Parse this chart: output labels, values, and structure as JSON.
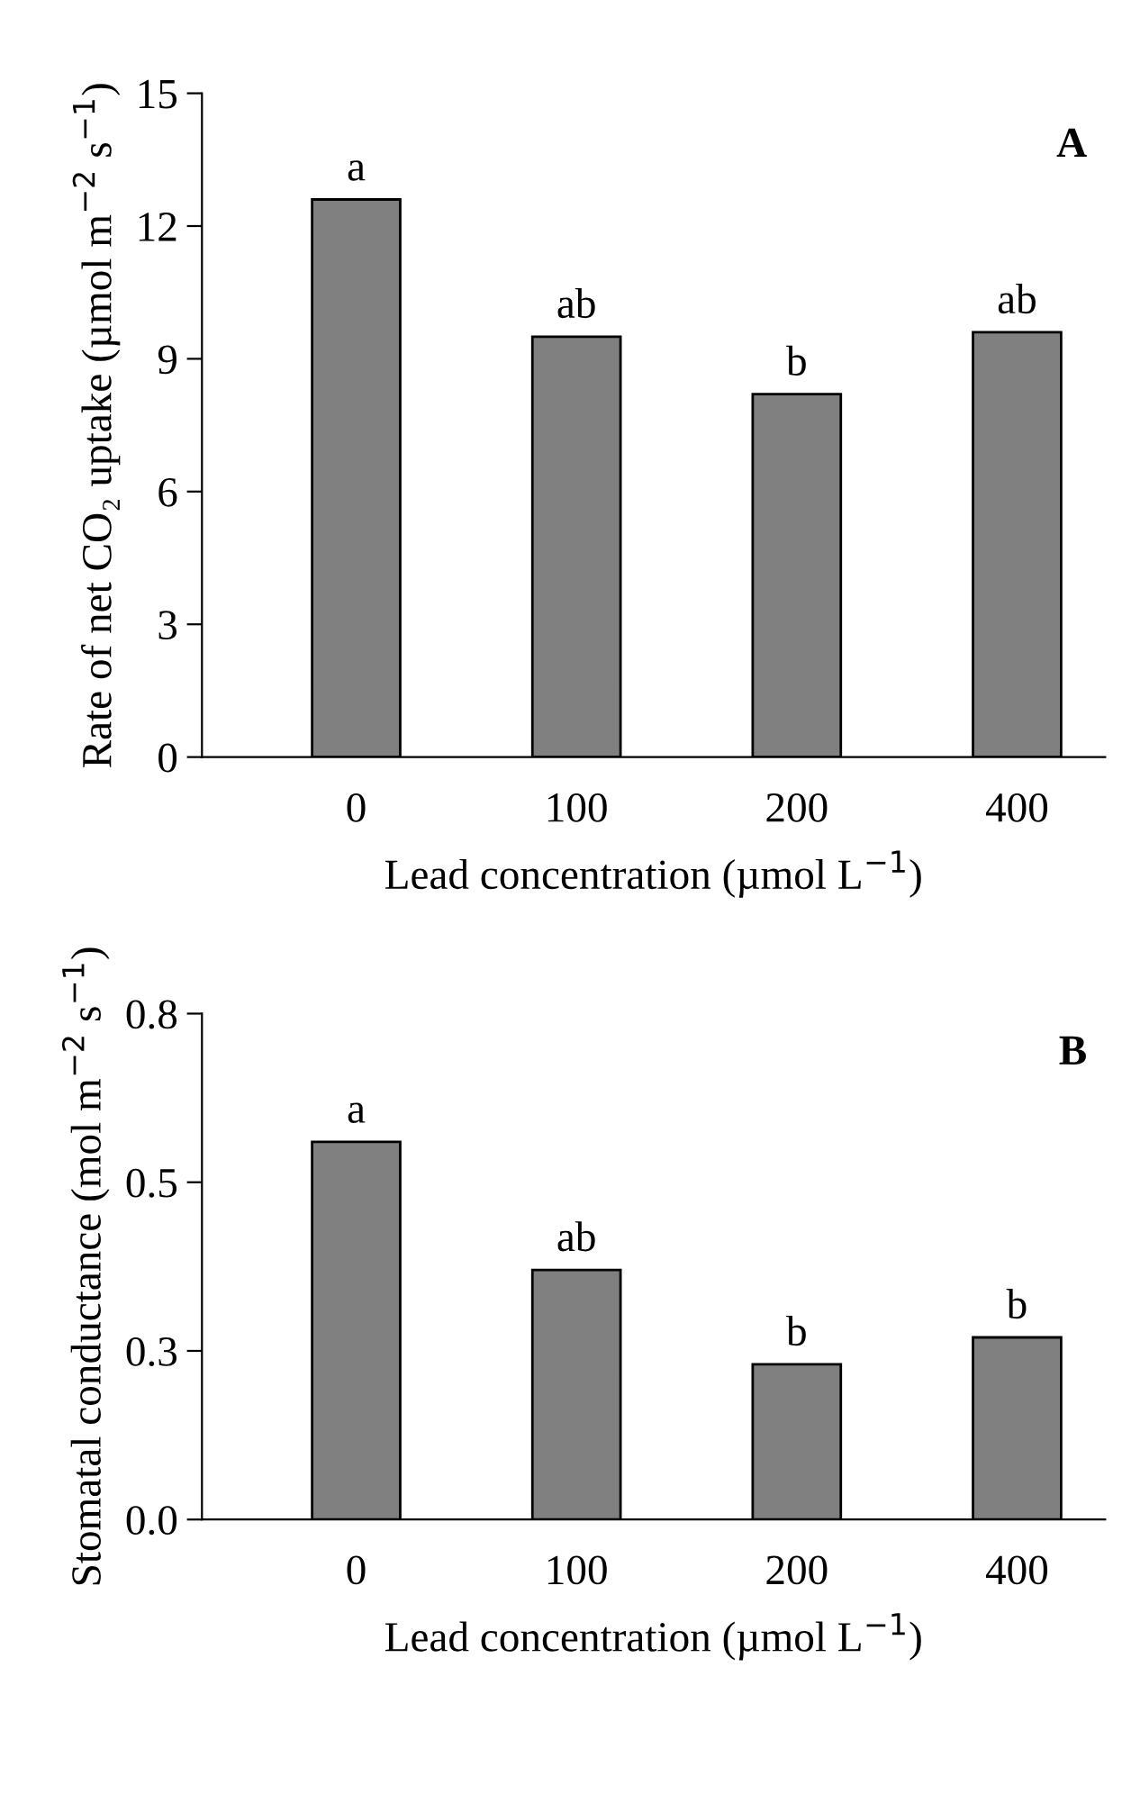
{
  "chart_data": [
    {
      "type": "bar",
      "categories": [
        "0",
        "100",
        "200",
        "400"
      ],
      "values": [
        12.6,
        9.5,
        8.2,
        9.6
      ],
      "color": "#808080",
      "xlabel": "Lead concentration (µmol L$^{−1}$)",
      "ylabel": "Rate of net CO₂ uptake (µmol m$^{−2}$ s$^{−1}$)",
      "ylim": [
        0,
        15
      ],
      "yticks": [
        0,
        3,
        6,
        9,
        12,
        15
      ],
      "grid": false,
      "annotations": [
        "A",
        {
          "text": "a",
          "x": "0",
          "y": 12.6
        },
        {
          "text": "ab",
          "x": "100",
          "y": 9.5
        },
        {
          "text": "b",
          "x": "200",
          "y": 8.2
        },
        {
          "text": "ab",
          "x": "400",
          "y": 9.6
        }
      ]
    },
    {
      "type": "bar",
      "categories": [
        "0",
        "100",
        "200",
        "400"
      ],
      "values": [
        0.56,
        0.37,
        0.23,
        0.27
      ],
      "color": "#808080",
      "xlabel": "Lead concentration (µmol L$^{−1}$)",
      "ylabel": "Stomatal conductance (mol m$^{−2}$ s$^{−1}$)",
      "ylim": [
        0,
        0.75
      ],
      "yticks": [
        {
          "value": 0,
          "label": "0.0"
        },
        {
          "value": 0.25,
          "label": "0.3"
        },
        {
          "value": 0.5,
          "label": "0.5"
        },
        {
          "value": 0.75,
          "label": "0.8"
        }
      ],
      "grid": false,
      "annotations": [
        "B",
        {
          "text": "a",
          "x": "0",
          "y": 0.56
        },
        {
          "text": "ab",
          "x": "100",
          "y": 0.37
        },
        {
          "text": "b",
          "x": "200",
          "y": 0.23
        },
        {
          "text": "b",
          "x": "400",
          "y": 0.27
        }
      ]
    }
  ]
}
